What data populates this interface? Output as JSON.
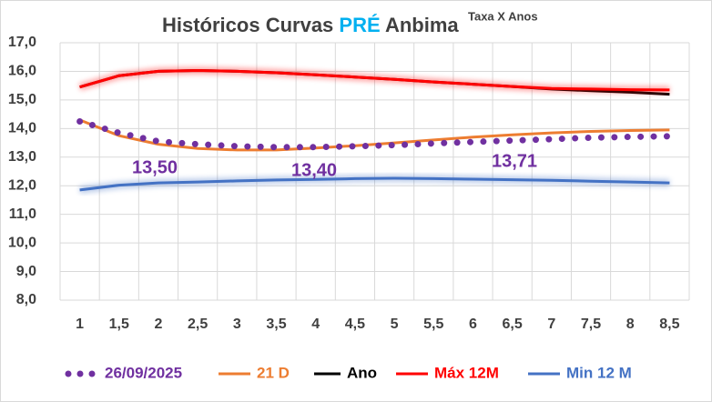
{
  "chart_data": {
    "type": "line",
    "title": [
      "Históricos Curvas",
      "PRÉ",
      "Anbima"
    ],
    "subtitle": "Taxa X Anos",
    "categories": [
      "1",
      "1,5",
      "2",
      "2,5",
      "3",
      "3,5",
      "4",
      "4,5",
      "5",
      "5,5",
      "6",
      "6,5",
      "7",
      "7,5",
      "8",
      "8,5"
    ],
    "series": [
      {
        "name": "26/09/2025",
        "color": "#7030a0",
        "style": "dotted",
        "values": [
          14.25,
          13.85,
          13.55,
          13.45,
          13.38,
          13.35,
          13.35,
          13.38,
          13.42,
          13.48,
          13.53,
          13.58,
          13.63,
          13.68,
          13.71,
          13.73
        ]
      },
      {
        "name": "21 D",
        "color": "#ed7d31",
        "style": "solid",
        "values": [
          14.3,
          13.75,
          13.45,
          13.3,
          13.25,
          13.25,
          13.32,
          13.4,
          13.5,
          13.6,
          13.7,
          13.78,
          13.85,
          13.9,
          13.93,
          13.95
        ]
      },
      {
        "name": "Ano",
        "color": "#000000",
        "style": "solid",
        "values": [
          15.45,
          15.85,
          16.0,
          16.03,
          16.0,
          15.95,
          15.88,
          15.8,
          15.72,
          15.63,
          15.55,
          15.47,
          15.38,
          15.32,
          15.27,
          15.2
        ]
      },
      {
        "name": "Máx 12M",
        "color": "#ff0000",
        "style": "glow",
        "values": [
          15.45,
          15.85,
          16.0,
          16.03,
          16.0,
          15.95,
          15.88,
          15.8,
          15.72,
          15.63,
          15.55,
          15.47,
          15.4,
          15.38,
          15.36,
          15.35
        ]
      },
      {
        "name": "Min 12 M",
        "color": "#4472c4",
        "style": "glow",
        "values": [
          11.85,
          12.02,
          12.1,
          12.13,
          12.17,
          12.2,
          12.22,
          12.25,
          12.26,
          12.25,
          12.23,
          12.21,
          12.19,
          12.16,
          12.13,
          12.1
        ]
      }
    ],
    "annotations": [
      {
        "text": "13,50",
        "color": "#7030a0"
      },
      {
        "text": "13,40",
        "color": "#7030a0"
      },
      {
        "text": "13,71",
        "color": "#7030a0"
      }
    ],
    "ylim": [
      8,
      17
    ],
    "yticks": [
      {
        "value": 8,
        "label": "8,0"
      },
      {
        "value": 9,
        "label": "9,0"
      },
      {
        "value": 10,
        "label": "10,0"
      },
      {
        "value": 11,
        "label": "11,0"
      },
      {
        "value": 12,
        "label": "12,0"
      },
      {
        "value": 13,
        "label": "13,0"
      },
      {
        "value": 14,
        "label": "14,0"
      },
      {
        "value": 15,
        "label": "15,0"
      },
      {
        "value": 16,
        "label": "16,0"
      },
      {
        "value": 17,
        "label": "17,0"
      }
    ],
    "grid": true,
    "legend": "bottom"
  }
}
